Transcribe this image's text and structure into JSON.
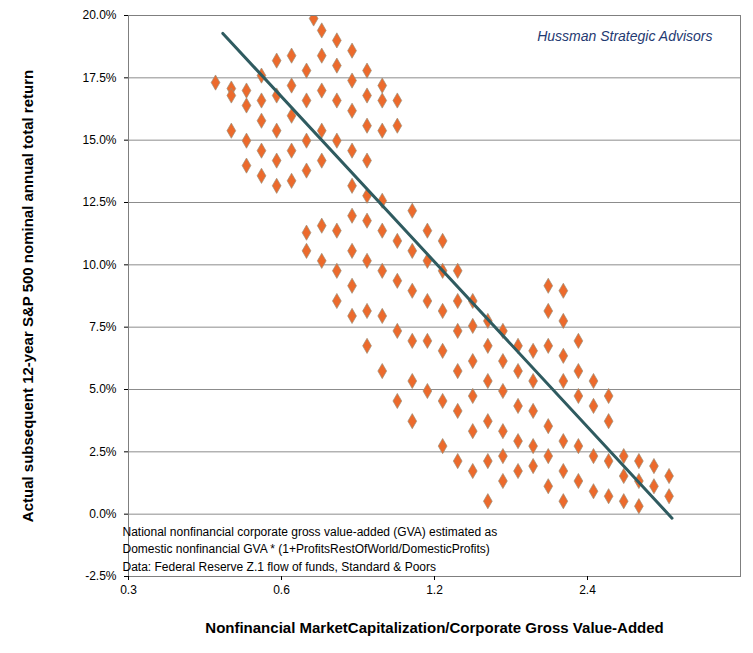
{
  "chart_data": {
    "type": "scatter",
    "x_label": "Nonfinancial MarketCapitalization/Corporate Gross Value-Added",
    "y_label": "Actual subsequent 12-year S&P 500 nominal annual total return",
    "annotations": [
      "Hussman Strategic Advisors",
      "National nonfinancial corporate gross value-added (GVA) estimated as",
      "Domestic nonfinancial GVA * (1+ProfitsRestOfWorld/DomesticProfits)",
      "Data: Federal Reserve Z.1 flow of funds, Standard & Poors"
    ],
    "log": "x",
    "grid": "y",
    "xlim": [
      0.3,
      4.8
    ],
    "xticks": [
      0.3,
      0.6,
      1.2,
      2.4
    ],
    "ylim": [
      -2.5,
      20
    ],
    "yticks": [
      {
        "value": -2.5,
        "label": "-2.5%"
      },
      {
        "value": 0,
        "label": "0.0%"
      },
      {
        "value": 2.5,
        "label": "2.5%"
      },
      {
        "value": 5,
        "label": "5.0%"
      },
      {
        "value": 7.5,
        "label": "7.5%"
      },
      {
        "value": 10,
        "label": "10.0%"
      },
      {
        "value": 12.5,
        "label": "12.5%"
      },
      {
        "value": 15,
        "label": "15.0%"
      },
      {
        "value": 17.5,
        "label": "17.5%"
      },
      {
        "value": 20,
        "label": "20.0%"
      }
    ],
    "series": [
      {
        "type": "scatter",
        "color": "#ec6a2c",
        "marker": "diamond",
        "x": [
          0.445,
          0.478,
          0.478,
          0.478,
          0.512,
          0.512,
          0.512,
          0.512,
          0.548,
          0.548,
          0.548,
          0.548,
          0.548,
          0.587,
          0.587,
          0.587,
          0.587,
          0.587,
          0.628,
          0.628,
          0.628,
          0.628,
          0.628,
          0.672,
          0.672,
          0.672,
          0.672,
          0.672,
          0.672,
          0.694,
          0.72,
          0.72,
          0.72,
          0.72,
          0.72,
          0.72,
          0.72,
          0.771,
          0.771,
          0.771,
          0.771,
          0.771,
          0.771,
          0.771,
          0.826,
          0.826,
          0.826,
          0.826,
          0.826,
          0.826,
          0.826,
          0.826,
          0.826,
          0.884,
          0.884,
          0.884,
          0.884,
          0.884,
          0.884,
          0.884,
          0.884,
          0.884,
          0.947,
          0.947,
          0.947,
          0.947,
          0.947,
          0.947,
          0.947,
          0.947,
          1.014,
          1.014,
          1.014,
          1.014,
          1.014,
          1.014,
          1.085,
          1.085,
          1.085,
          1.085,
          1.085,
          1.085,
          1.162,
          1.162,
          1.162,
          1.162,
          1.162,
          1.245,
          1.245,
          1.245,
          1.245,
          1.245,
          1.245,
          1.333,
          1.333,
          1.333,
          1.333,
          1.333,
          1.333,
          1.427,
          1.427,
          1.427,
          1.427,
          1.427,
          1.427,
          1.528,
          1.528,
          1.528,
          1.528,
          1.528,
          1.528,
          1.636,
          1.636,
          1.636,
          1.636,
          1.636,
          1.636,
          1.752,
          1.752,
          1.752,
          1.752,
          1.752,
          1.876,
          1.876,
          1.876,
          1.876,
          1.876,
          2.009,
          2.009,
          2.009,
          2.009,
          2.009,
          2.009,
          2.151,
          2.151,
          2.151,
          2.151,
          2.151,
          2.151,
          2.151,
          2.303,
          2.303,
          2.303,
          2.303,
          2.303,
          2.466,
          2.466,
          2.466,
          2.466,
          2.641,
          2.641,
          2.641,
          2.641,
          2.828,
          2.828,
          2.828,
          3.029,
          3.029,
          3.029,
          3.243,
          3.243,
          3.473,
          3.473
        ],
        "values": [
          17.31,
          17.07,
          16.79,
          15.38,
          16.99,
          16.39,
          14.98,
          13.98,
          17.59,
          16.59,
          15.78,
          14.58,
          13.57,
          18.19,
          16.79,
          15.38,
          14.18,
          13.17,
          18.39,
          17.19,
          15.98,
          14.58,
          13.37,
          17.79,
          16.59,
          14.98,
          13.78,
          11.29,
          10.56,
          19.88,
          19.4,
          18.39,
          16.99,
          15.38,
          14.18,
          11.57,
          10.16,
          19.0,
          17.99,
          16.59,
          14.98,
          11.37,
          9.76,
          8.55,
          18.59,
          17.39,
          16.18,
          14.58,
          13.17,
          11.97,
          10.56,
          9.16,
          7.95,
          17.79,
          16.79,
          15.58,
          14.18,
          12.77,
          11.77,
          10.16,
          8.15,
          6.75,
          17.19,
          16.59,
          15.38,
          12.57,
          11.37,
          9.76,
          7.95,
          5.74,
          16.59,
          15.58,
          10.96,
          9.36,
          7.35,
          4.54,
          12.17,
          10.56,
          8.96,
          6.95,
          5.34,
          3.73,
          11.37,
          10.16,
          8.55,
          6.95,
          4.94,
          10.96,
          9.76,
          8.15,
          6.55,
          4.54,
          2.73,
          9.76,
          8.55,
          7.35,
          5.74,
          4.14,
          2.13,
          8.55,
          7.55,
          6.14,
          4.74,
          3.33,
          1.73,
          7.75,
          6.75,
          5.34,
          3.73,
          2.13,
          0.52,
          7.35,
          6.14,
          4.94,
          3.33,
          2.33,
          1.33,
          6.75,
          5.74,
          4.34,
          2.93,
          1.73,
          6.55,
          5.34,
          4.14,
          2.73,
          1.93,
          9.16,
          8.15,
          6.75,
          3.53,
          2.33,
          1.12,
          8.96,
          7.75,
          6.35,
          5.34,
          2.93,
          1.73,
          0.52,
          6.95,
          5.74,
          4.74,
          2.73,
          1.33,
          5.34,
          4.34,
          2.33,
          0.92,
          4.74,
          3.73,
          2.13,
          0.72,
          2.33,
          1.53,
          0.52,
          2.13,
          1.33,
          0.32,
          1.93,
          1.12,
          1.53,
          0.72
        ]
      },
      {
        "type": "line",
        "color": "#2f5b60",
        "line_style": "solid",
        "x": [
          0.46,
          3.52
        ],
        "values": [
          19.28,
          -0.16
        ]
      }
    ]
  }
}
